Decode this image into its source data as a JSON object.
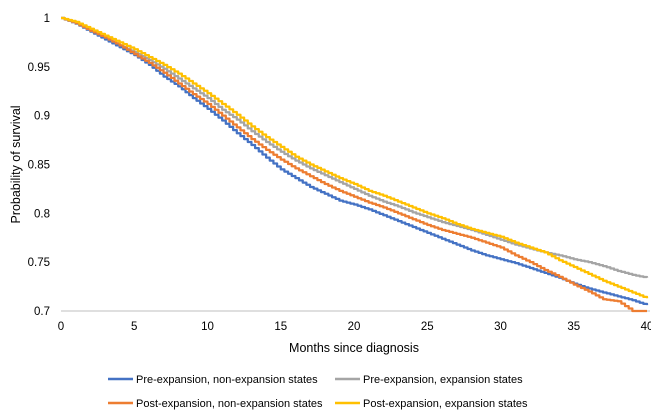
{
  "chart_data": {
    "type": "line",
    "title": "",
    "xlabel": "Months since diagnosis",
    "ylabel": "Probability of survival",
    "xlim": [
      0,
      40
    ],
    "ylim": [
      0.7,
      1
    ],
    "x_ticks": [
      0,
      5,
      10,
      15,
      20,
      25,
      30,
      35,
      40
    ],
    "y_ticks": [
      0.7,
      0.75,
      0.8,
      0.85,
      0.9,
      0.95,
      1
    ],
    "x_tick_labels": [
      "0",
      "5",
      "10",
      "15",
      "20",
      "25",
      "30",
      "35",
      "40"
    ],
    "y_tick_labels": [
      "0.7",
      "0.75",
      "0.8",
      "0.85",
      "0.9",
      "0.95",
      "1"
    ],
    "grid": false,
    "legend_position": "bottom",
    "series": [
      {
        "name": "Pre-expansion, non-expansion states",
        "color": "#4472C4",
        "x": [
          0,
          1,
          2,
          3,
          4,
          5,
          6,
          7,
          8,
          9,
          10,
          11,
          12,
          13,
          14,
          15,
          16,
          17,
          18,
          19,
          20,
          21,
          22,
          23,
          24,
          25,
          26,
          27,
          28,
          29,
          30,
          31,
          32,
          33,
          34,
          35,
          36,
          37,
          38,
          39,
          40
        ],
        "values": [
          1.0,
          0.994,
          0.986,
          0.978,
          0.97,
          0.962,
          0.952,
          0.94,
          0.93,
          0.918,
          0.907,
          0.895,
          0.882,
          0.87,
          0.857,
          0.845,
          0.836,
          0.827,
          0.82,
          0.813,
          0.809,
          0.804,
          0.798,
          0.792,
          0.786,
          0.78,
          0.774,
          0.768,
          0.762,
          0.757,
          0.753,
          0.749,
          0.744,
          0.739,
          0.734,
          0.728,
          0.723,
          0.719,
          0.715,
          0.711,
          0.706
        ]
      },
      {
        "name": "Pre-expansion, expansion states",
        "color": "#A5A5A5",
        "x": [
          0,
          1,
          2,
          3,
          4,
          5,
          6,
          7,
          8,
          9,
          10,
          11,
          12,
          13,
          14,
          15,
          16,
          17,
          18,
          19,
          20,
          21,
          22,
          23,
          24,
          25,
          26,
          27,
          28,
          29,
          30,
          31,
          32,
          33,
          34,
          35,
          36,
          37,
          38,
          39,
          40
        ],
        "values": [
          1.0,
          0.994,
          0.987,
          0.98,
          0.972,
          0.965,
          0.957,
          0.948,
          0.938,
          0.928,
          0.918,
          0.906,
          0.896,
          0.884,
          0.873,
          0.863,
          0.854,
          0.846,
          0.839,
          0.832,
          0.825,
          0.818,
          0.812,
          0.807,
          0.801,
          0.796,
          0.791,
          0.787,
          0.783,
          0.778,
          0.773,
          0.768,
          0.764,
          0.76,
          0.757,
          0.753,
          0.75,
          0.746,
          0.741,
          0.737,
          0.734
        ]
      },
      {
        "name": "Post-expansion, non-expansion states",
        "color": "#ED7D31",
        "x": [
          0,
          1,
          2,
          3,
          4,
          5,
          6,
          7,
          8,
          9,
          10,
          11,
          12,
          13,
          14,
          15,
          16,
          17,
          18,
          19,
          20,
          21,
          22,
          23,
          24,
          25,
          26,
          27,
          28,
          29,
          30,
          31,
          32,
          33,
          34,
          35,
          36,
          37,
          38,
          39,
          40
        ],
        "values": [
          1.0,
          0.995,
          0.987,
          0.98,
          0.972,
          0.963,
          0.954,
          0.944,
          0.933,
          0.922,
          0.912,
          0.9,
          0.888,
          0.876,
          0.865,
          0.855,
          0.846,
          0.838,
          0.83,
          0.823,
          0.817,
          0.811,
          0.806,
          0.8,
          0.794,
          0.788,
          0.783,
          0.779,
          0.775,
          0.77,
          0.765,
          0.757,
          0.75,
          0.742,
          0.735,
          0.727,
          0.72,
          0.712,
          0.71,
          0.7,
          0.7
        ]
      },
      {
        "name": "Post-expansion, expansion states",
        "color": "#FFC000",
        "x": [
          0,
          1,
          2,
          3,
          4,
          5,
          6,
          7,
          8,
          9,
          10,
          11,
          12,
          13,
          14,
          15,
          16,
          17,
          18,
          19,
          20,
          21,
          22,
          23,
          24,
          25,
          26,
          27,
          28,
          29,
          30,
          31,
          32,
          33,
          34,
          35,
          36,
          37,
          38,
          39,
          40
        ],
        "values": [
          1.0,
          0.996,
          0.989,
          0.982,
          0.975,
          0.968,
          0.96,
          0.952,
          0.943,
          0.933,
          0.923,
          0.912,
          0.901,
          0.889,
          0.878,
          0.868,
          0.858,
          0.85,
          0.843,
          0.836,
          0.83,
          0.823,
          0.818,
          0.812,
          0.806,
          0.8,
          0.795,
          0.789,
          0.784,
          0.78,
          0.776,
          0.77,
          0.765,
          0.76,
          0.752,
          0.745,
          0.738,
          0.731,
          0.725,
          0.719,
          0.713
        ]
      }
    ]
  }
}
